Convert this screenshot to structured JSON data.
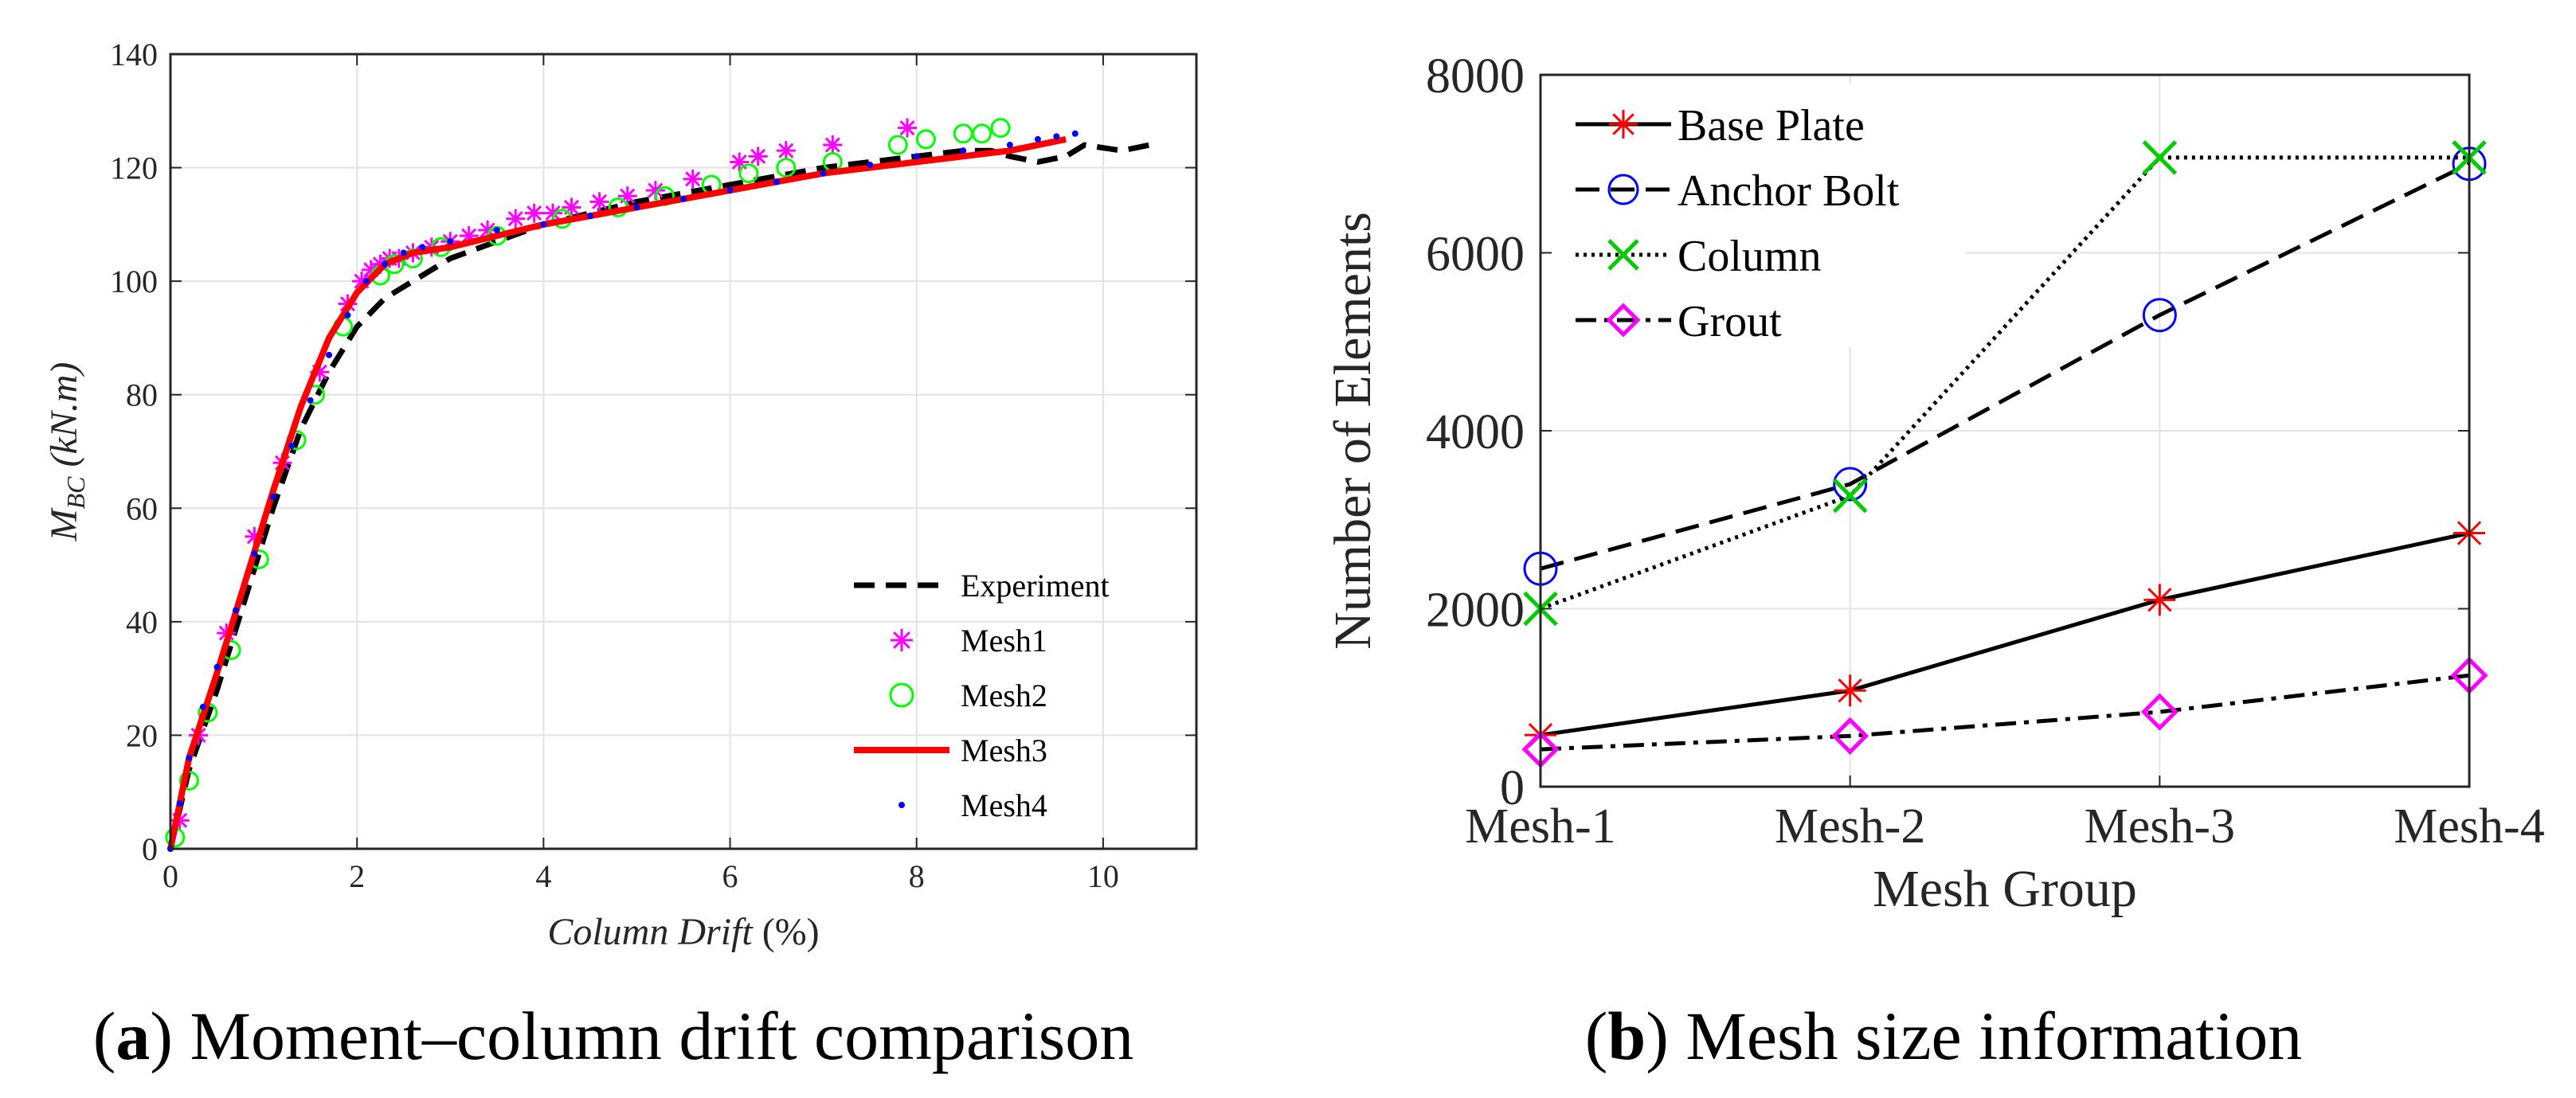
{
  "chart_data": [
    {
      "type": "line",
      "caption_letter": "a",
      "caption_text": "Moment–column drift comparison",
      "xlabel": "Column Drift",
      "xlabel_unit": "(%)",
      "ylabel_main": "M",
      "ylabel_sub": "BC",
      "ylabel_unit": "(kN.m)",
      "xlim": [
        0,
        11
      ],
      "ylim": [
        0,
        140
      ],
      "xticks": [
        0,
        2,
        4,
        6,
        8,
        10
      ],
      "yticks": [
        0,
        20,
        40,
        60,
        80,
        100,
        120,
        140
      ],
      "grid": true,
      "legend_position": "bottom-right",
      "series": [
        {
          "name": "Experiment",
          "style": "dashed",
          "color": "#000000",
          "x": [
            0,
            0.2,
            0.5,
            0.8,
            1.1,
            1.4,
            1.7,
            2.0,
            2.3,
            2.6,
            3.0,
            3.5,
            4.0,
            5.0,
            6.0,
            7.0,
            8.0,
            8.5,
            8.8,
            9.0,
            9.3,
            9.6,
            9.8,
            10.2,
            10.5
          ],
          "y": [
            0,
            14,
            28,
            44,
            60,
            74,
            84,
            92,
            97,
            100,
            104,
            107,
            110,
            114,
            117,
            120,
            122,
            123,
            123,
            122,
            121,
            122,
            124,
            123,
            124
          ]
        },
        {
          "name": "Mesh1",
          "style": "markers",
          "marker": "star",
          "color": "#ff00ff",
          "x": [
            0.1,
            0.3,
            0.6,
            0.9,
            1.2,
            1.6,
            1.9,
            2.05,
            2.15,
            2.25,
            2.35,
            2.45,
            2.6,
            2.8,
            3.0,
            3.2,
            3.4,
            3.7,
            3.9,
            4.1,
            4.3,
            4.6,
            4.9,
            5.2,
            5.6,
            6.1,
            6.3,
            6.6,
            7.1,
            7.9
          ],
          "y": [
            5,
            20,
            38,
            55,
            68,
            84,
            96,
            100,
            102,
            103,
            104,
            104,
            105,
            106,
            107,
            108,
            109,
            111,
            112,
            112,
            113,
            114,
            115,
            116,
            118,
            121,
            122,
            123,
            124,
            127
          ]
        },
        {
          "name": "Mesh2",
          "style": "markers",
          "marker": "circle",
          "color": "#00ff00",
          "x": [
            0.05,
            0.2,
            0.4,
            0.65,
            0.95,
            1.35,
            1.55,
            1.85,
            2.25,
            2.4,
            2.6,
            2.9,
            3.5,
            4.2,
            4.8,
            5.3,
            5.8,
            6.2,
            6.6,
            7.1,
            7.8,
            8.1,
            8.5,
            8.7,
            8.9
          ],
          "y": [
            2,
            12,
            24,
            35,
            51,
            72,
            80,
            92,
            101,
            103,
            104,
            106,
            108,
            111,
            113,
            115,
            117,
            119,
            120,
            121,
            124,
            125,
            126,
            126,
            127
          ]
        },
        {
          "name": "Mesh3",
          "style": "solid",
          "color": "#ff0000",
          "x": [
            0,
            0.2,
            0.5,
            0.8,
            1.1,
            1.4,
            1.7,
            2.0,
            2.3,
            2.6,
            3.0,
            4.0,
            5.0,
            6.0,
            7.0,
            8.0,
            9.0,
            9.6
          ],
          "y": [
            0,
            16,
            31,
            47,
            63,
            78,
            90,
            98,
            103,
            105,
            106,
            110,
            113,
            116,
            119,
            121,
            123,
            125
          ]
        },
        {
          "name": "Mesh4",
          "style": "markers",
          "marker": "dot",
          "color": "#0000ff",
          "x": [
            0,
            0.1,
            0.2,
            0.35,
            0.5,
            0.7,
            0.9,
            1.1,
            1.3,
            1.5,
            1.7,
            1.9,
            2.1,
            2.3,
            2.5,
            2.7,
            3.0,
            3.5,
            4.0,
            4.5,
            5.0,
            5.5,
            6.0,
            6.5,
            7.0,
            7.5,
            8.0,
            8.5,
            9.0,
            9.3,
            9.5,
            9.7
          ],
          "y": [
            0,
            8,
            16,
            25,
            32,
            42,
            52,
            62,
            71,
            79,
            87,
            94,
            100,
            103,
            105,
            106,
            107,
            109,
            110,
            111.5,
            113,
            114.5,
            116,
            117.5,
            119,
            120.5,
            122,
            123,
            124,
            125,
            125.5,
            126
          ]
        }
      ]
    },
    {
      "type": "line",
      "caption_letter": "b",
      "caption_text": "Mesh size information",
      "xlabel": "Mesh Group",
      "ylabel": "Number of Elements",
      "categories": [
        "Mesh-1",
        "Mesh-2",
        "Mesh-3",
        "Mesh-4"
      ],
      "ylim": [
        0,
        8000
      ],
      "yticks": [
        0,
        2000,
        4000,
        6000,
        8000
      ],
      "grid": true,
      "legend_position": "top-left",
      "series": [
        {
          "name": "Base Plate",
          "style": "solid",
          "marker": "star",
          "line_color": "#000000",
          "marker_color": "#ff0000",
          "values": [
            580,
            1080,
            2100,
            2850
          ]
        },
        {
          "name": "Anchor Bolt",
          "style": "dashed",
          "marker": "circle",
          "line_color": "#000000",
          "marker_color": "#0000ff",
          "values": [
            2450,
            3400,
            5300,
            7000
          ]
        },
        {
          "name": "Column",
          "style": "dotted",
          "marker": "x",
          "line_color": "#000000",
          "marker_color": "#00cc00",
          "values": [
            2000,
            3270,
            7070,
            7070
          ]
        },
        {
          "name": "Grout",
          "style": "dashdot",
          "marker": "diamond",
          "line_color": "#000000",
          "marker_color": "#ff00ff",
          "values": [
            420,
            570,
            840,
            1250
          ]
        }
      ]
    }
  ]
}
